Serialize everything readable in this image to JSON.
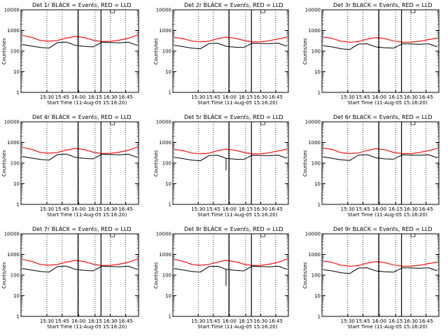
{
  "chart_data": [
    {
      "type": "line",
      "title": "Det 1r BLACK = Events, RED = LLD",
      "ylabel": "Counts/sec",
      "xlabel": "Start Time (11-Aug-05 15:16:20)",
      "xticks": [
        "15:30",
        "15:45",
        "16:00",
        "16:15",
        "16:30",
        "16:45"
      ],
      "yticks": [
        "1",
        "10",
        "100",
        "1000",
        "10000"
      ],
      "ylim": [
        1,
        10000
      ],
      "yscale": "log",
      "series": [
        {
          "color": "#ff0000",
          "levels": [
            580,
            470,
            330,
            300,
            330,
            430,
            520,
            450,
            340,
            290,
            300,
            340,
            420,
            600
          ]
        },
        {
          "color": "#000000",
          "levels": [
            210,
            175,
            150,
            140,
            260,
            270,
            190,
            170,
            160,
            270,
            260,
            250,
            270,
            190
          ],
          "dropout": null
        }
      ]
    },
    {
      "type": "line",
      "title": "Det 2r BLACK = Events, RED = LLD",
      "ylabel": "Counts/sec",
      "xlabel": "Start Time (11-Aug-05 15:16:20)",
      "xticks": [
        "15:30",
        "15:45",
        "16:00",
        "16:15",
        "16:30",
        "16:45"
      ],
      "yticks": [
        "1",
        "10",
        "100",
        "1000",
        "10000"
      ],
      "ylim": [
        1,
        10000
      ],
      "yscale": "log",
      "series": [
        {
          "color": "#ff0000",
          "levels": [
            470,
            400,
            310,
            280,
            300,
            400,
            480,
            420,
            330,
            280,
            280,
            320,
            390,
            470
          ]
        },
        {
          "color": "#000000",
          "levels": [
            190,
            165,
            140,
            130,
            230,
            240,
            170,
            155,
            150,
            240,
            235,
            230,
            240,
            170
          ],
          "dropout": null
        }
      ]
    },
    {
      "type": "line",
      "title": "Det 3r BLACK = Events, RED = LLD",
      "ylabel": "Counts/sec",
      "xlabel": "Start Time (11-Aug-05 15:16:20)",
      "xticks": [
        "15:30",
        "15:45",
        "16:00",
        "16:15",
        "16:30",
        "16:45"
      ],
      "yticks": [
        "1",
        "10",
        "100",
        "1000",
        "10000"
      ],
      "ylim": [
        1,
        10000
      ],
      "yscale": "log",
      "series": [
        {
          "color": "#ff0000",
          "levels": [
            480,
            410,
            300,
            270,
            290,
            380,
            450,
            400,
            310,
            270,
            270,
            300,
            360,
            430
          ]
        },
        {
          "color": "#000000",
          "levels": [
            180,
            160,
            130,
            120,
            220,
            225,
            160,
            145,
            140,
            225,
            220,
            215,
            225,
            160
          ],
          "dropout": null
        }
      ]
    },
    {
      "type": "line",
      "title": "Det 4r BLACK = Events, RED = LLD",
      "ylabel": "Counts/sec",
      "xlabel": "Start Time (11-Aug-05 15:16:20)",
      "xticks": [
        "15:30",
        "15:45",
        "16:00",
        "16:15",
        "16:30",
        "16:45"
      ],
      "yticks": [
        "1",
        "10",
        "100",
        "1000",
        "10000"
      ],
      "ylim": [
        1,
        10000
      ],
      "yscale": "log",
      "series": [
        {
          "color": "#ff0000",
          "levels": [
            580,
            470,
            330,
            300,
            330,
            430,
            520,
            450,
            340,
            290,
            300,
            340,
            420,
            600
          ]
        },
        {
          "color": "#000000",
          "levels": [
            210,
            175,
            150,
            140,
            260,
            270,
            190,
            170,
            160,
            270,
            260,
            250,
            270,
            190
          ],
          "dropout": null
        }
      ]
    },
    {
      "type": "line",
      "title": "Det 5r BLACK = Events, RED = LLD",
      "ylabel": "Counts/sec",
      "xlabel": "Start Time (11-Aug-05 15:16:20)",
      "xticks": [
        "15:30",
        "15:45",
        "16:00",
        "16:15",
        "16:30",
        "16:45"
      ],
      "yticks": [
        "1",
        "10",
        "100",
        "1000",
        "10000"
      ],
      "ylim": [
        1,
        10000
      ],
      "yscale": "log",
      "series": [
        {
          "color": "#ff0000",
          "levels": [
            470,
            400,
            310,
            280,
            300,
            400,
            480,
            420,
            330,
            280,
            280,
            320,
            390,
            470
          ]
        },
        {
          "color": "#000000",
          "levels": [
            190,
            165,
            140,
            130,
            230,
            240,
            170,
            155,
            150,
            240,
            235,
            230,
            240,
            170
          ],
          "dropout": [
            0.46,
            45
          ]
        }
      ]
    },
    {
      "type": "line",
      "title": "Det 6r BLACK = Events, RED = LLD",
      "ylabel": "Counts/sec",
      "xlabel": "Start Time (11-Aug-05 15:16:20)",
      "xticks": [
        "15:30",
        "15:45",
        "16:00",
        "16:15",
        "16:30",
        "16:45"
      ],
      "yticks": [
        "1",
        "10",
        "100",
        "1000",
        "10000"
      ],
      "ylim": [
        1,
        10000
      ],
      "yscale": "log",
      "series": [
        {
          "color": "#ff0000",
          "levels": [
            540,
            450,
            320,
            290,
            310,
            410,
            500,
            440,
            330,
            285,
            290,
            330,
            400,
            520
          ]
        },
        {
          "color": "#000000",
          "levels": [
            200,
            170,
            145,
            135,
            245,
            255,
            180,
            160,
            155,
            255,
            245,
            240,
            255,
            180
          ],
          "dropout": null
        }
      ]
    },
    {
      "type": "line",
      "title": "Det 7r BLACK = Events, RED = LLD",
      "ylabel": "Counts/sec",
      "xlabel": "Start Time (11-Aug-05 15:16:20)",
      "xticks": [
        "15:30",
        "15:45",
        "16:00",
        "16:15",
        "16:30",
        "16:45"
      ],
      "yticks": [
        "1",
        "10",
        "100",
        "1000",
        "10000"
      ],
      "ylim": [
        1,
        10000
      ],
      "yscale": "log",
      "series": [
        {
          "color": "#ff0000",
          "levels": [
            580,
            470,
            330,
            300,
            330,
            430,
            520,
            450,
            340,
            290,
            300,
            340,
            420,
            600
          ]
        },
        {
          "color": "#000000",
          "levels": [
            210,
            175,
            150,
            140,
            260,
            270,
            190,
            170,
            160,
            270,
            260,
            250,
            270,
            190
          ],
          "dropout": null
        }
      ]
    },
    {
      "type": "line",
      "title": "Det 8r BLACK = Events, RED = LLD",
      "ylabel": "Counts/sec",
      "xlabel": "Start Time (11-Aug-05 15:16:20)",
      "xticks": [
        "15:30",
        "15:45",
        "16:00",
        "16:15",
        "16:30",
        "16:45"
      ],
      "yticks": [
        "1",
        "10",
        "100",
        "1000",
        "10000"
      ],
      "ylim": [
        1,
        10000
      ],
      "yscale": "log",
      "series": [
        {
          "color": "#ff0000",
          "levels": [
            580,
            470,
            330,
            300,
            330,
            430,
            520,
            450,
            340,
            290,
            300,
            340,
            420,
            600
          ]
        },
        {
          "color": "#000000",
          "levels": [
            210,
            175,
            150,
            140,
            260,
            270,
            190,
            170,
            160,
            270,
            260,
            250,
            270,
            190
          ],
          "dropout": [
            0.46,
            30
          ]
        }
      ]
    },
    {
      "type": "line",
      "title": "Det 9r BLACK = Events, RED = LLD",
      "ylabel": "Counts/sec",
      "xlabel": "Start Time (11-Aug-05 15:16:20)",
      "xticks": [
        "15:30",
        "15:45",
        "16:00",
        "16:15",
        "16:30",
        "16:45"
      ],
      "yticks": [
        "1",
        "10",
        "100",
        "1000",
        "10000"
      ],
      "ylim": [
        1,
        10000
      ],
      "yscale": "log",
      "series": [
        {
          "color": "#ff0000",
          "levels": [
            480,
            410,
            300,
            270,
            290,
            380,
            450,
            400,
            310,
            270,
            270,
            300,
            360,
            430
          ]
        },
        {
          "color": "#000000",
          "levels": [
            180,
            160,
            130,
            120,
            220,
            225,
            160,
            145,
            140,
            225,
            220,
            215,
            225,
            160
          ],
          "dropout": null
        }
      ]
    }
  ]
}
